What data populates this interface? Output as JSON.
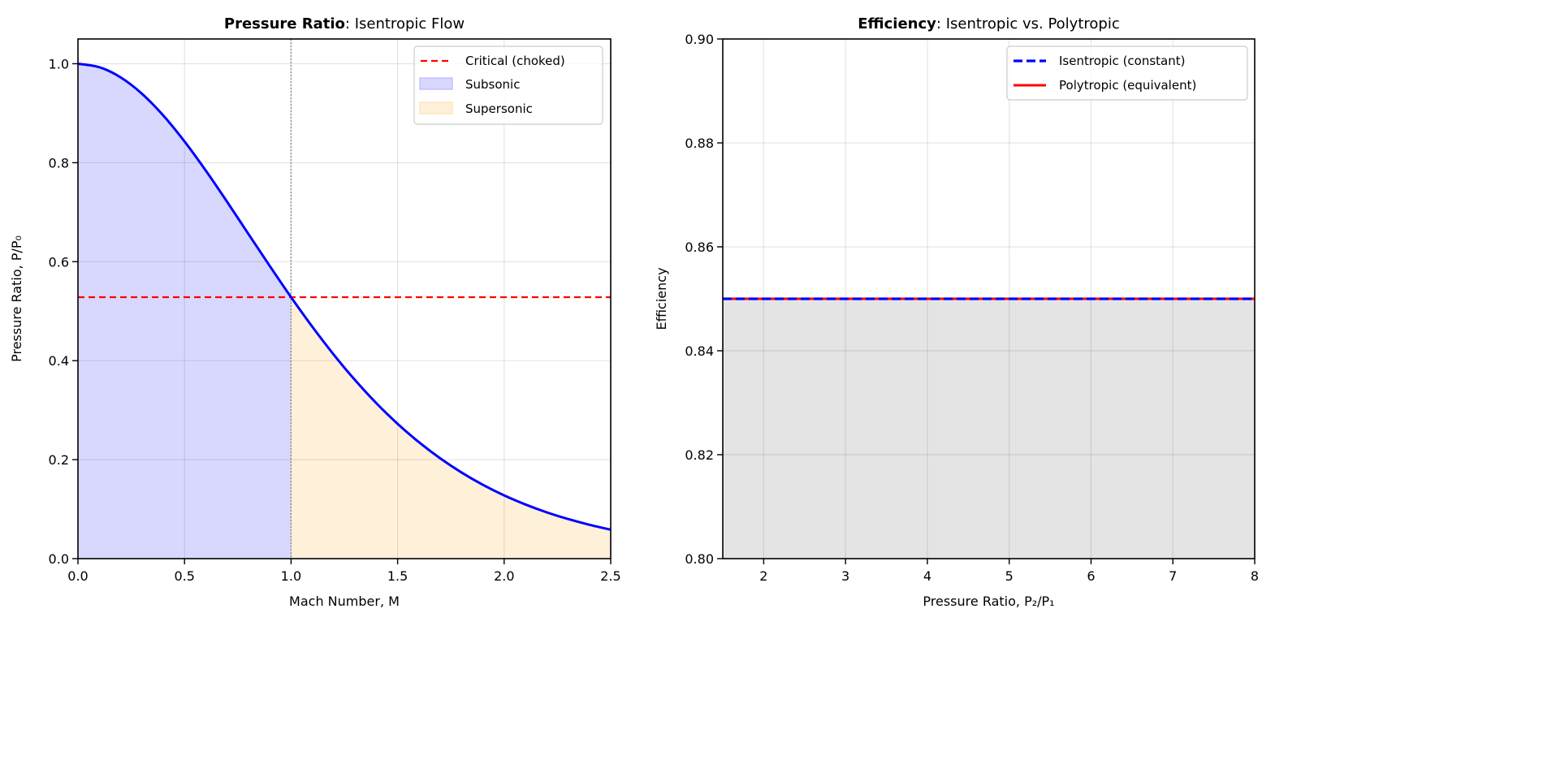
{
  "chart_data": [
    {
      "type": "line",
      "title_bold": "Pressure Ratio",
      "title_rest": ": Isentropic Flow",
      "xlabel": "Mach Number, M",
      "ylabel": "Pressure Ratio, P/P₀",
      "xlim": [
        0,
        2.5
      ],
      "ylim": [
        0,
        1.05
      ],
      "xticks": [
        0.0,
        0.5,
        1.0,
        1.5,
        2.0,
        2.5
      ],
      "xtick_labels": [
        "0.0",
        "0.5",
        "1.0",
        "1.5",
        "2.0",
        "2.5"
      ],
      "yticks": [
        0.0,
        0.2,
        0.4,
        0.6,
        0.8,
        1.0
      ],
      "ytick_labels": [
        "0.0",
        "0.2",
        "0.4",
        "0.6",
        "0.8",
        "1.0"
      ],
      "grid": true,
      "legend_position": "top-right",
      "x": [
        0,
        0.1,
        0.2,
        0.3,
        0.4,
        0.5,
        0.6,
        0.7,
        0.8,
        0.9,
        1.0,
        1.1,
        1.2,
        1.3,
        1.4,
        1.5,
        1.6,
        1.7,
        1.8,
        1.9,
        2.0,
        2.1,
        2.2,
        2.3,
        2.4,
        2.5
      ],
      "series": [
        {
          "name": "P/P0",
          "color": "#0000ff",
          "values": [
            1.0,
            0.993,
            0.9725,
            0.9395,
            0.8956,
            0.843,
            0.784,
            0.7209,
            0.656,
            0.5913,
            0.5283,
            0.4684,
            0.4124,
            0.3609,
            0.3142,
            0.2724,
            0.2353,
            0.2026,
            0.174,
            0.1492,
            0.1278,
            0.1094,
            0.0935,
            0.08,
            0.0684,
            0.0585
          ]
        }
      ],
      "critical": {
        "name": "Critical (choked)",
        "value": 0.5283,
        "color": "#ff0000"
      },
      "vline_x": 1.0,
      "regions": [
        {
          "name": "Subsonic",
          "range": [
            0,
            1.0
          ],
          "color": "#d8d8ff",
          "edge": "#b8b8ff"
        },
        {
          "name": "Supersonic",
          "range": [
            1.0,
            2.5
          ],
          "color": "#fff0da",
          "edge": "#ffe0b0"
        }
      ]
    },
    {
      "type": "line",
      "title_bold": "Efficiency",
      "title_rest": ": Isentropic vs. Polytropic",
      "xlabel": "Pressure Ratio, P₂/P₁",
      "ylabel": "Efficiency",
      "xlim": [
        1.5,
        8
      ],
      "ylim": [
        0.8,
        0.9
      ],
      "xticks": [
        2,
        3,
        4,
        5,
        6,
        7,
        8
      ],
      "xtick_labels": [
        "2",
        "3",
        "4",
        "5",
        "6",
        "7",
        "8"
      ],
      "yticks": [
        0.8,
        0.82,
        0.84,
        0.86,
        0.88,
        0.9
      ],
      "ytick_labels": [
        "0.80",
        "0.82",
        "0.84",
        "0.86",
        "0.88",
        "0.90"
      ],
      "grid": true,
      "legend_position": "top-right",
      "series": [
        {
          "name": "Isentropic (constant)",
          "color": "#0000ff",
          "style": "dashed",
          "x": [
            1.5,
            8
          ],
          "values": [
            0.85,
            0.85
          ]
        },
        {
          "name": "Polytropic (equivalent)",
          "color": "#ff0000",
          "style": "solid",
          "x": [
            1.5,
            8
          ],
          "values": [
            0.85,
            0.85
          ]
        }
      ],
      "fill": {
        "range_y": [
          0.8,
          0.85
        ],
        "color": "#e4e4e4"
      }
    }
  ]
}
